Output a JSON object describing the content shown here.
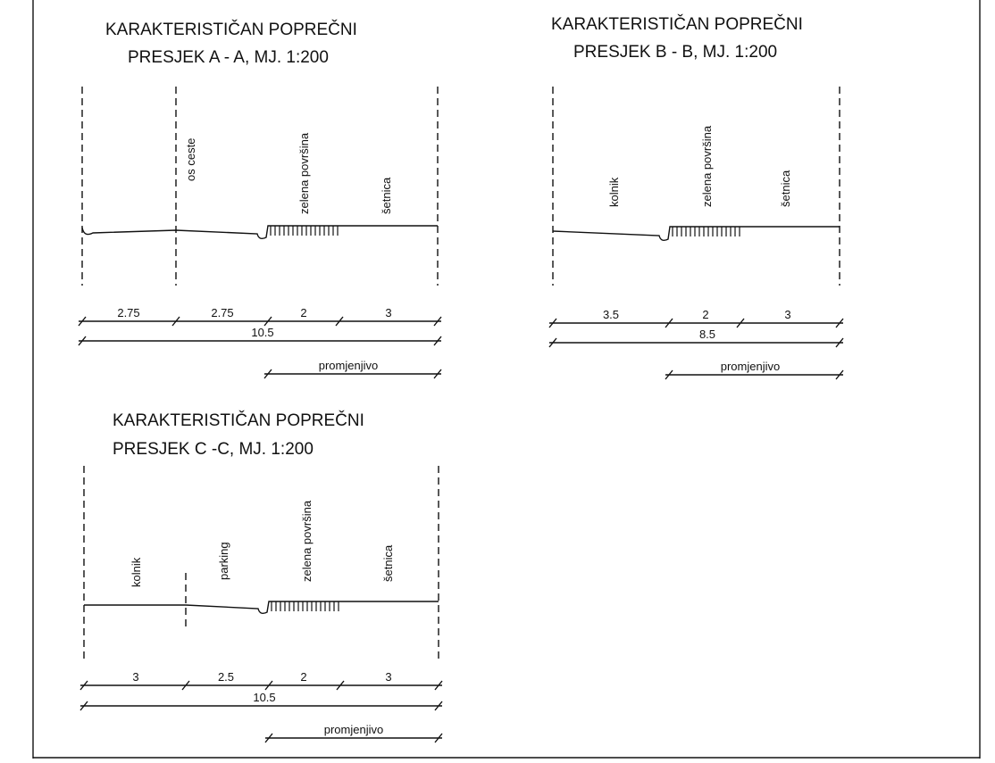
{
  "sections": [
    {
      "id": "A",
      "title": [
        "KARAKTERISTIČAN  POPREČNI",
        "PRESJEK   A - A,   MJ. 1:200"
      ],
      "labels": [
        "os ceste",
        "zelena površina",
        "šetnica"
      ],
      "dims": [
        "2.75",
        "2.75",
        "2",
        "3"
      ],
      "total": "10.5",
      "variable": "promjenjivo"
    },
    {
      "id": "B",
      "title": [
        "KARAKTERISTIČAN  POPREČNI",
        "PRESJEK    B - B,   MJ. 1:200"
      ],
      "labels": [
        "kolnik",
        "zelena površina",
        "šetnica"
      ],
      "dims": [
        "3.5",
        "2",
        "3"
      ],
      "total": "8.5",
      "variable": "promjenjivo"
    },
    {
      "id": "C",
      "title": [
        "KARAKTERISTIČAN  POPREČNI",
        "PRESJEK    C -C,   MJ. 1:200"
      ],
      "labels": [
        "kolnik",
        "parking",
        "zelena površina",
        "šetnica"
      ],
      "dims": [
        "3",
        "2.5",
        "2",
        "3"
      ],
      "total": "10.5",
      "variable": "promjenjivo"
    }
  ]
}
